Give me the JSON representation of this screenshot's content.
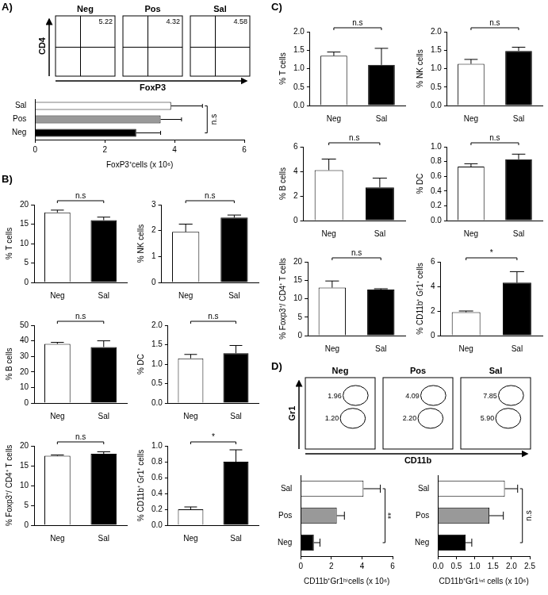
{
  "panel_labels": [
    "A)",
    "B)",
    "C)",
    "D)"
  ],
  "flow_plots": [
    {
      "x_label": "FoxP3",
      "y_label": "CD4",
      "samples": [
        {
          "name": "Neg",
          "gate_values": [
            "5.22"
          ]
        },
        {
          "name": "Pos",
          "gate_values": [
            "4.32"
          ]
        },
        {
          "name": "Sal",
          "gate_values": [
            "4.58"
          ]
        }
      ]
    },
    {
      "x_label": "CD11b",
      "y_label": "Gr1",
      "samples": [
        {
          "name": "Neg",
          "gate_values": [
            "1.96",
            "1.20"
          ]
        },
        {
          "name": "Pos",
          "gate_values": [
            "4.09",
            "2.20"
          ]
        },
        {
          "name": "Sal",
          "gate_values": [
            "7.85",
            "5.90"
          ]
        }
      ]
    }
  ],
  "chart_data": [
    {
      "type": "bar",
      "orientation": "horizontal",
      "categories": [
        "Sal",
        "Pos",
        "Neg"
      ],
      "values": [
        3.9,
        3.6,
        2.9
      ],
      "errors": [
        0.9,
        0.6,
        0.7
      ],
      "colors": [
        "#ffffff",
        "#999999",
        "#000000"
      ],
      "x_label": "FoxP3⁺cells (x 10⁶)",
      "xlim": [
        0,
        6
      ],
      "xticks": [
        0,
        2,
        4,
        6
      ],
      "grid": false,
      "annotation": "n.s"
    },
    {
      "type": "bar",
      "categories": [
        "Neg",
        "Sal"
      ],
      "values": [
        18,
        16
      ],
      "errors": [
        0.6,
        0.8
      ],
      "colors": [
        "#ffffff",
        "#000000"
      ],
      "y_label": "% T cells",
      "ylim": [
        0,
        20
      ],
      "yticks": [
        0,
        5,
        10,
        15,
        20
      ],
      "grid": false,
      "annotation": "n.s"
    },
    {
      "type": "bar",
      "categories": [
        "Neg",
        "Sal"
      ],
      "values": [
        1.95,
        2.5
      ],
      "errors": [
        0.3,
        0.1
      ],
      "colors": [
        "#ffffff",
        "#000000"
      ],
      "y_label": "% NK cells",
      "ylim": [
        0,
        3
      ],
      "yticks": [
        0,
        1,
        2,
        3
      ],
      "grid": false,
      "annotation": "n.s"
    },
    {
      "type": "bar",
      "categories": [
        "Neg",
        "Sal"
      ],
      "values": [
        38,
        36
      ],
      "errors": [
        1,
        4
      ],
      "colors": [
        "#ffffff",
        "#000000"
      ],
      "y_label": "% B cells",
      "ylim": [
        0,
        50
      ],
      "yticks": [
        0,
        10,
        20,
        30,
        40,
        50
      ],
      "grid": false,
      "annotation": "n.s"
    },
    {
      "type": "bar",
      "categories": [
        "Neg",
        "Sal"
      ],
      "values": [
        1.15,
        1.28
      ],
      "errors": [
        0.1,
        0.2
      ],
      "colors": [
        "#ffffff",
        "#000000"
      ],
      "y_label": "% DC",
      "ylim": [
        0,
        2
      ],
      "yticks": [
        {
          "value": 0,
          "label": "0.0"
        },
        0.5,
        {
          "value": 1,
          "label": "1.0"
        },
        1.5,
        {
          "value": 2,
          "label": "2.0"
        }
      ],
      "grid": false,
      "annotation": "n.s"
    },
    {
      "type": "bar",
      "categories": [
        "Neg",
        "Sal"
      ],
      "values": [
        17.5,
        18
      ],
      "errors": [
        0.2,
        0.5
      ],
      "colors": [
        "#ffffff",
        "#000000"
      ],
      "y_label": "% Foxp3⁺/ CD4⁺ T cells",
      "ylim": [
        0,
        20
      ],
      "yticks": [
        0,
        5,
        10,
        15,
        20
      ],
      "grid": false,
      "annotation": "n.s"
    },
    {
      "type": "bar",
      "categories": [
        "Neg",
        "Sal"
      ],
      "values": [
        0.2,
        0.8
      ],
      "errors": [
        0.03,
        0.15
      ],
      "colors": [
        "#ffffff",
        "#000000"
      ],
      "y_label": "% CD11b⁺ Gr1⁺ cells",
      "ylim": [
        0,
        1
      ],
      "yticks": [
        {
          "value": 0,
          "label": "0.0"
        },
        0.2,
        0.4,
        0.6,
        0.8,
        {
          "value": 1,
          "label": "1.0"
        }
      ],
      "grid": false,
      "annotation": "*"
    },
    {
      "type": "bar",
      "categories": [
        "Neg",
        "Sal"
      ],
      "values": [
        1.35,
        1.1
      ],
      "errors": [
        0.1,
        0.45
      ],
      "colors": [
        "#ffffff",
        "#000000"
      ],
      "y_label": "% T cells",
      "ylim": [
        0,
        2
      ],
      "yticks": [
        {
          "value": 0,
          "label": "0.0"
        },
        0.5,
        {
          "value": 1,
          "label": "1.0"
        },
        1.5,
        {
          "value": 2,
          "label": "2.0"
        }
      ],
      "grid": false,
      "annotation": "n.s"
    },
    {
      "type": "bar",
      "categories": [
        "Neg",
        "Sal"
      ],
      "values": [
        1.13,
        1.48
      ],
      "errors": [
        0.12,
        0.1
      ],
      "colors": [
        "#ffffff",
        "#000000"
      ],
      "y_label": "% NK cells",
      "ylim": [
        0,
        2
      ],
      "yticks": [
        {
          "value": 0,
          "label": "0.0"
        },
        0.5,
        {
          "value": 1,
          "label": "1.0"
        },
        1.5,
        {
          "value": 2,
          "label": "2.0"
        }
      ],
      "grid": false,
      "annotation": "n.s"
    },
    {
      "type": "bar",
      "categories": [
        "Neg",
        "Sal"
      ],
      "values": [
        4.1,
        2.7
      ],
      "errors": [
        0.9,
        0.75
      ],
      "colors": [
        "#ffffff",
        "#000000"
      ],
      "y_label": "% B cells",
      "ylim": [
        0,
        6
      ],
      "yticks": [
        0,
        2,
        4,
        6
      ],
      "grid": false,
      "annotation": "n.s"
    },
    {
      "type": "bar",
      "categories": [
        "Neg",
        "Sal"
      ],
      "values": [
        0.73,
        0.83
      ],
      "errors": [
        0.04,
        0.07
      ],
      "colors": [
        "#ffffff",
        "#000000"
      ],
      "y_label": "% DC",
      "ylim": [
        0,
        1
      ],
      "yticks": [
        {
          "value": 0,
          "label": "0.0"
        },
        0.2,
        0.4,
        0.6,
        0.8,
        {
          "value": 1,
          "label": "1.0"
        }
      ],
      "grid": false,
      "annotation": "n.s"
    },
    {
      "type": "bar",
      "categories": [
        "Neg",
        "Sal"
      ],
      "values": [
        13,
        12.5
      ],
      "errors": [
        1.8,
        0.2
      ],
      "colors": [
        "#ffffff",
        "#000000"
      ],
      "y_label": "% Foxp3⁺/ CD4⁺ T cells",
      "ylim": [
        0,
        20
      ],
      "yticks": [
        0,
        5,
        10,
        15,
        20
      ],
      "grid": false,
      "annotation": "n.s"
    },
    {
      "type": "bar",
      "categories": [
        "Neg",
        "Sal"
      ],
      "values": [
        1.9,
        4.3
      ],
      "errors": [
        0.1,
        0.9
      ],
      "colors": [
        "#ffffff",
        "#000000"
      ],
      "y_label": "% CD11b⁺ Gr1⁺ cells",
      "ylim": [
        0,
        6
      ],
      "yticks": [
        0,
        2,
        4,
        6
      ],
      "grid": false,
      "annotation": "*"
    },
    {
      "type": "bar",
      "orientation": "horizontal",
      "categories": [
        "Sal",
        "Pos",
        "Neg"
      ],
      "values": [
        4.1,
        2.35,
        0.85
      ],
      "errors": [
        1.1,
        0.5,
        0.4
      ],
      "colors": [
        "#ffffff",
        "#999999",
        "#000000"
      ],
      "x_label": "CD11b⁺Gr1ʰⁱcells (x 10⁶)",
      "xlim": [
        0,
        6
      ],
      "xticks": [
        0,
        2,
        4,
        6
      ],
      "grid": false,
      "annotation": "**"
    },
    {
      "type": "bar",
      "orientation": "horizontal",
      "categories": [
        "Sal",
        "Pos",
        "Neg"
      ],
      "values": [
        1.82,
        1.4,
        0.75
      ],
      "errors": [
        0.35,
        0.38,
        0.17
      ],
      "colors": [
        "#ffffff",
        "#999999",
        "#000000"
      ],
      "x_label": "CD11b⁺Gr1ⁱⁿᵗ cells (x 10⁶)",
      "xlim": [
        0,
        2.5
      ],
      "xticks": [
        {
          "value": 0,
          "label": "0.0"
        },
        0.5,
        {
          "value": 1,
          "label": "1.0"
        },
        1.5,
        {
          "value": 2,
          "label": "2.0"
        },
        2.5
      ],
      "grid": false,
      "annotation": "n.s"
    }
  ]
}
